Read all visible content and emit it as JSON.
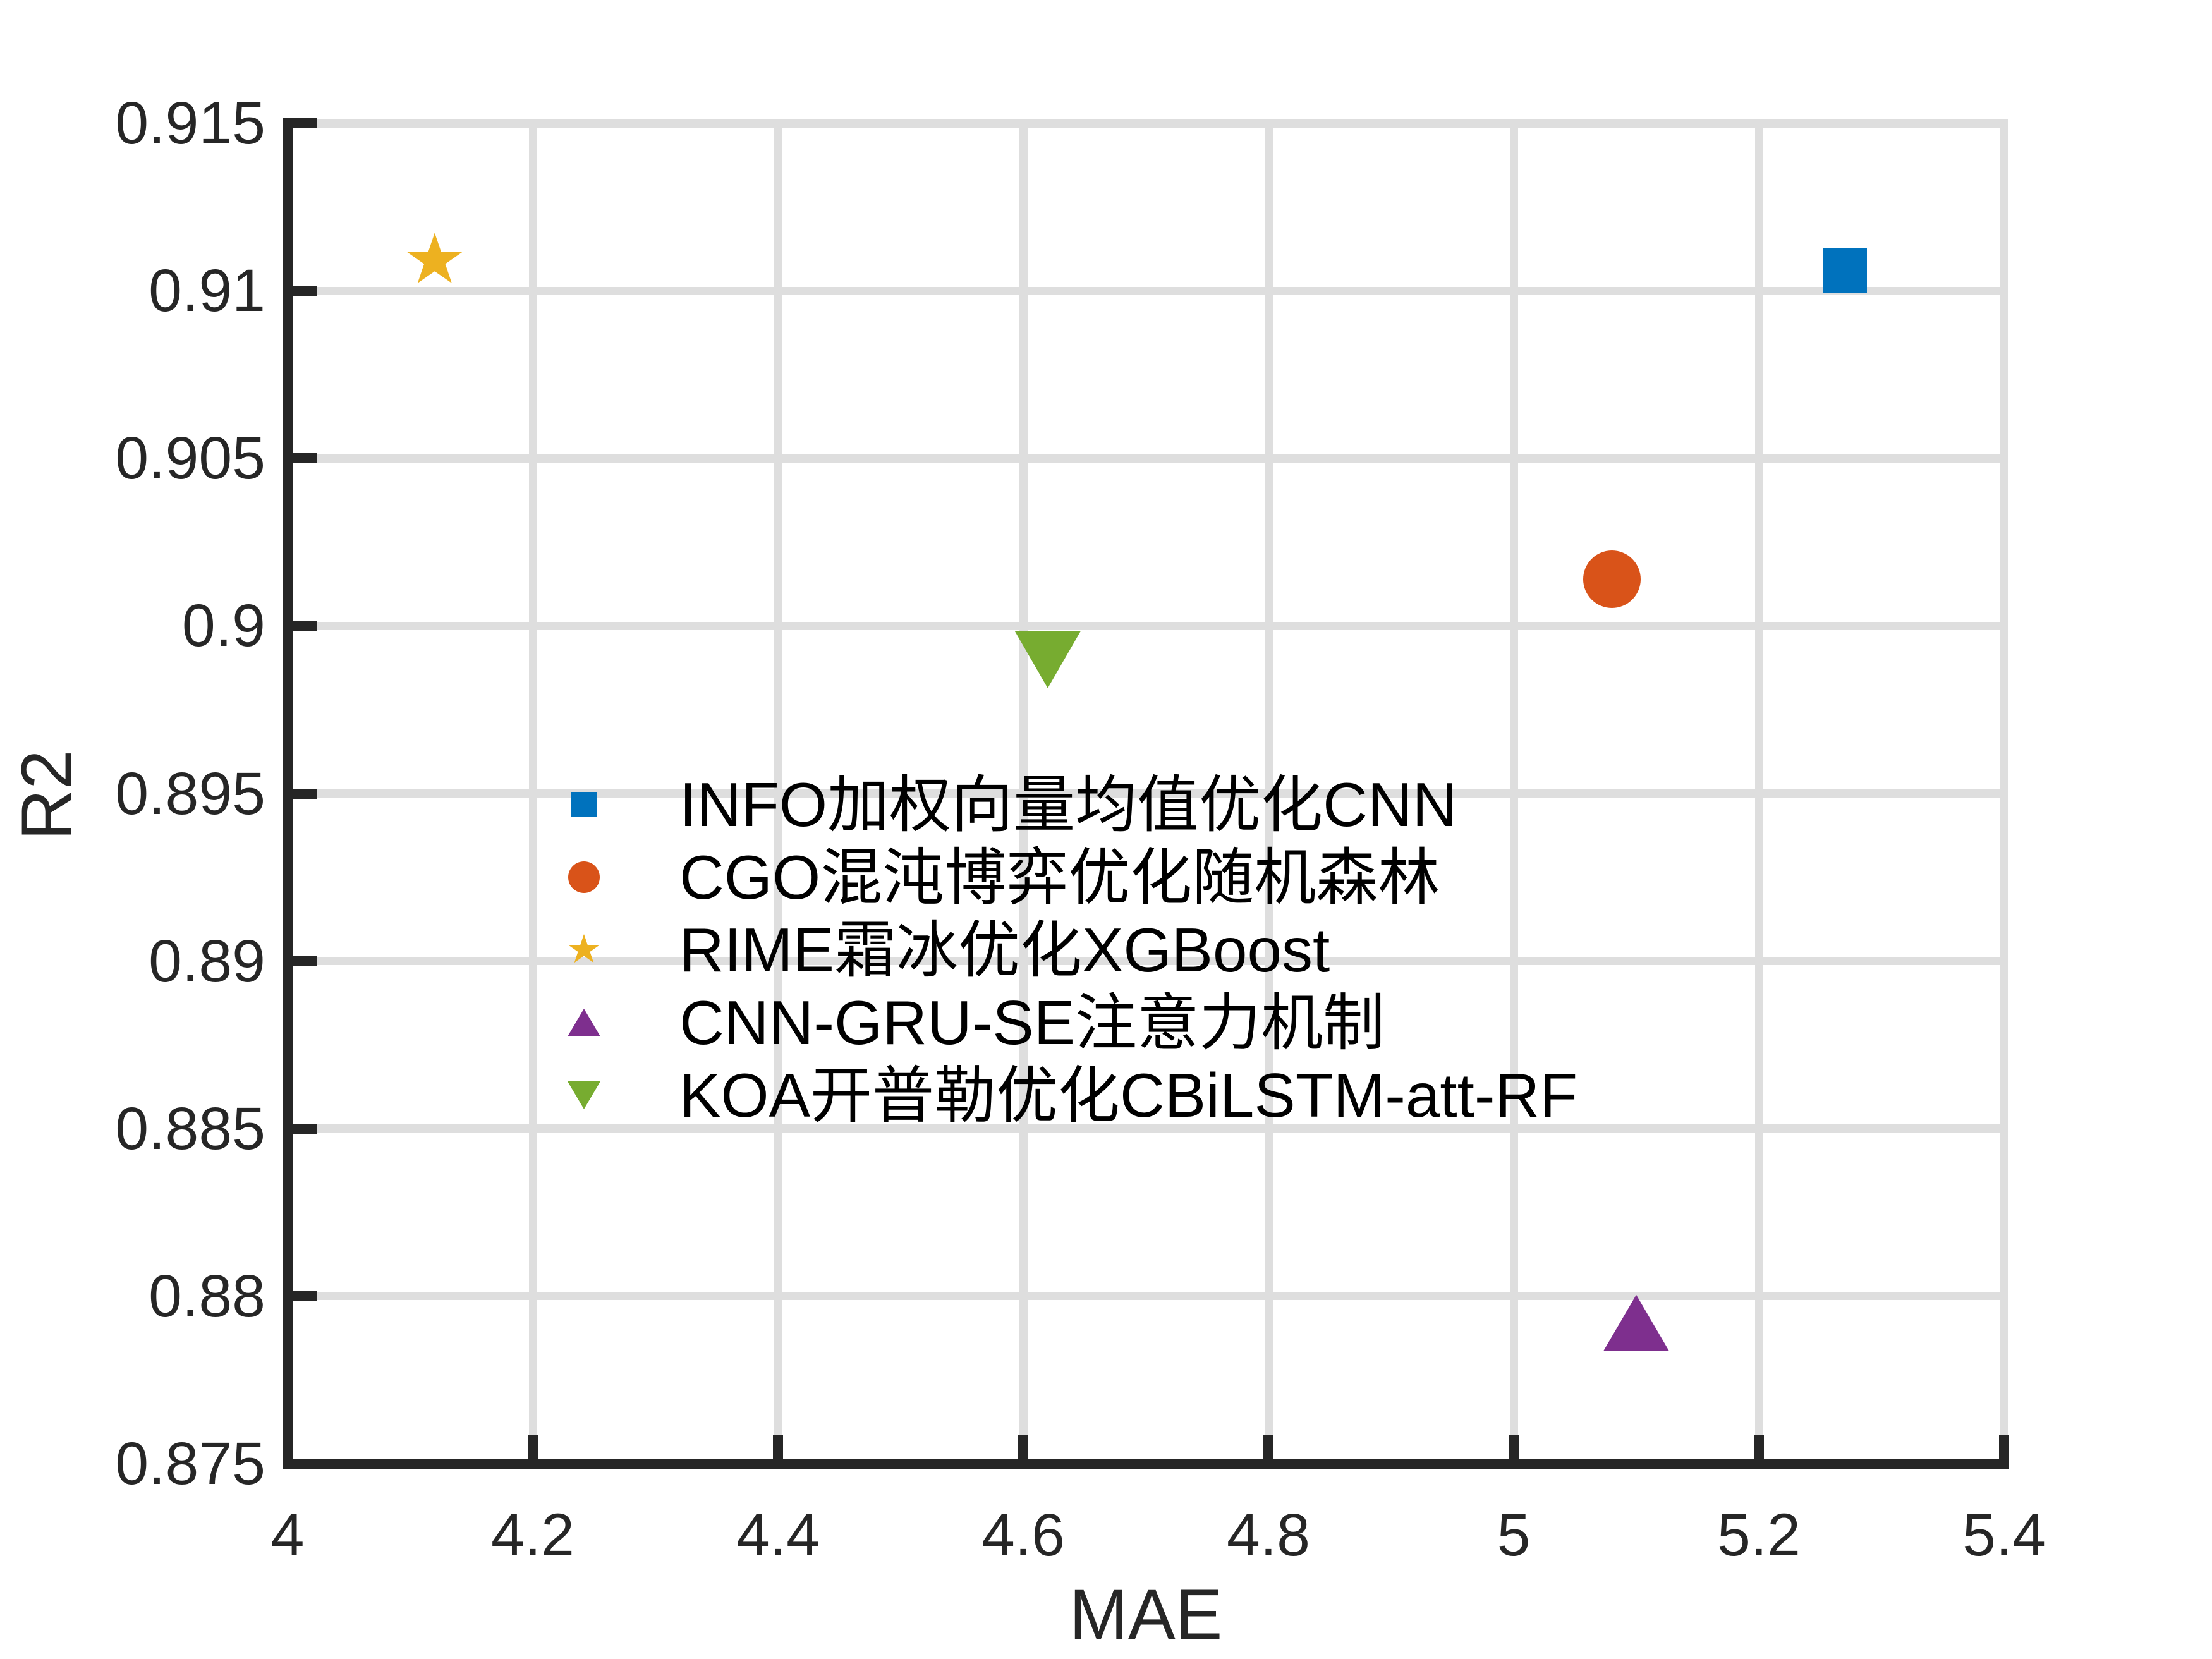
{
  "figure": {
    "background": "#ffffff",
    "axis_color": "#262626",
    "grid_color": "#DEDEDE"
  },
  "chart_data": {
    "type": "scatter",
    "title": "",
    "xlabel": "MAE",
    "ylabel": "R2",
    "xlim": [
      4,
      5.4
    ],
    "ylim": [
      0.875,
      0.915
    ],
    "grid": true,
    "x_ticks": [
      4,
      4.2,
      4.4,
      4.6,
      4.8,
      5,
      5.2,
      5.4
    ],
    "x_tick_labels": [
      "4",
      "4.2",
      "4.4",
      "4.6",
      "4.8",
      "5",
      "5.2",
      "5.4"
    ],
    "y_ticks": [
      0.875,
      0.88,
      0.885,
      0.89,
      0.895,
      0.9,
      0.905,
      0.91,
      0.915
    ],
    "y_tick_labels": [
      "0.875",
      "0.88",
      "0.885",
      "0.89",
      "0.895",
      "0.9",
      "0.905",
      "0.91",
      "0.915"
    ],
    "legend_position": "inside-center-left",
    "series": [
      {
        "name": "INFO加权向量均值优化CNN",
        "marker": "square",
        "color": "#0072BD",
        "points": [
          {
            "x": 5.27,
            "y": 0.9106
          }
        ]
      },
      {
        "name": "CGO混沌博弈优化随机森林",
        "marker": "circle",
        "color": "#D95319",
        "points": [
          {
            "x": 5.08,
            "y": 0.9014
          }
        ]
      },
      {
        "name": "RIME霜冰优化XGBoost",
        "marker": "star",
        "color": "#EDB120",
        "points": [
          {
            "x": 4.12,
            "y": 0.9109
          }
        ]
      },
      {
        "name": "CNN-GRU-SE注意力机制",
        "marker": "triangle-up",
        "color": "#7E2F8E",
        "points": [
          {
            "x": 5.1,
            "y": 0.8792
          }
        ]
      },
      {
        "name": "KOA开普勒优化CBiLSTM-att-RF",
        "marker": "triangle-down",
        "color": "#77AC30",
        "points": [
          {
            "x": 4.62,
            "y": 0.899
          }
        ]
      }
    ]
  }
}
